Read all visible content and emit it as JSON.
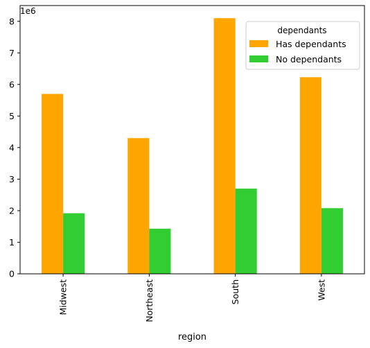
{
  "chart_data": {
    "type": "bar",
    "categories": [
      "Midwest",
      "Northeast",
      "South",
      "West"
    ],
    "series": [
      {
        "name": "Has dependants",
        "color": "#FFA500",
        "values": [
          5700000,
          4300000,
          8100000,
          6230000
        ]
      },
      {
        "name": "No dependants",
        "color": "#32CD32",
        "values": [
          1920000,
          1430000,
          2700000,
          2080000
        ]
      }
    ],
    "xlabel": "region",
    "ylabel": "",
    "ylim": [
      0,
      8500000
    ],
    "yticks": [
      0,
      1,
      2,
      3,
      4,
      5,
      6,
      7,
      8
    ],
    "y_offset_label": "1e6",
    "legend": {
      "title": "dependants",
      "placement": "top-right"
    },
    "grid": false
  }
}
